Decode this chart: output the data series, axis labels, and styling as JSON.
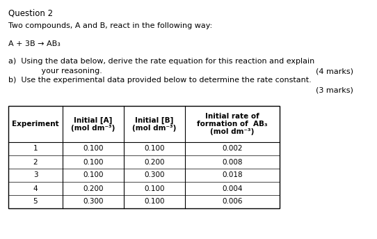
{
  "title": "Question 2",
  "line1": "Two compounds, A and B, react in the following way:",
  "equation": "A + 3B → AB₃",
  "part_a_line1": "a)  Using the data below, derive the rate equation for this reaction and explain",
  "part_a_line2": "         your reasoning.",
  "part_a_marks": "(4 marks)",
  "part_b_line1": "b)  Use the experimental data provided below to determine the rate constant.",
  "part_b_marks": "(3 marks)",
  "table_headers": [
    "Experiment",
    "Initial [A]\n(mol dm⁻³)",
    "Initial [B]\n(mol dm⁻³)",
    "Initial rate of\nformation of  AB₃\n(mol dm⁻³)"
  ],
  "table_data": [
    [
      "1",
      "0.100",
      "0.100",
      "0.002"
    ],
    [
      "2",
      "0.100",
      "0.200",
      "0.008"
    ],
    [
      "3",
      "0.100",
      "0.300",
      "0.018"
    ],
    [
      "4",
      "0.200",
      "0.100",
      "0.004"
    ],
    [
      "5",
      "0.300",
      "0.100",
      "0.006"
    ]
  ],
  "bg_color": "#ffffff",
  "text_color": "#000000",
  "fig_width": 5.42,
  "fig_height": 3.43,
  "dpi": 100
}
